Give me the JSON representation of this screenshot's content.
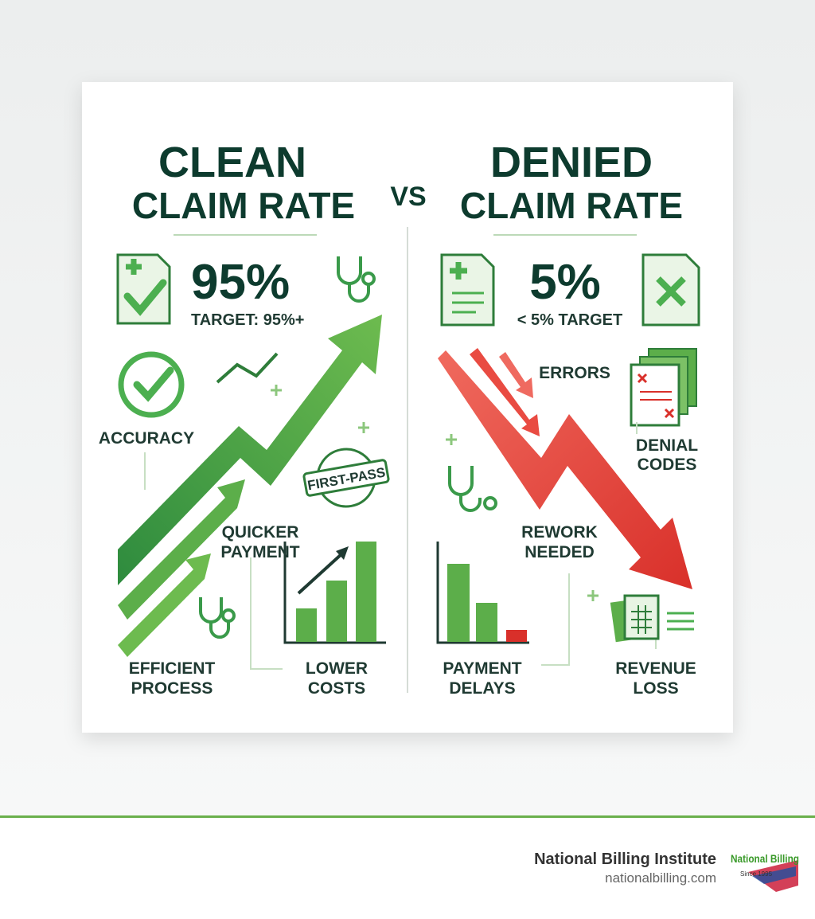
{
  "infographic": {
    "left": {
      "title": [
        "CLEAN",
        "CLAIM RATE"
      ],
      "stat": "95%",
      "target": "TARGET: 95%+",
      "stamp": "FIRST-PASS",
      "labels": {
        "accuracy": [
          "ACCURACY"
        ],
        "quicker": [
          "QUICKER",
          "PAYMENT"
        ],
        "efficient": [
          "EFFICIENT",
          "PROCESS"
        ],
        "costs": [
          "LOWER",
          "COSTS"
        ]
      }
    },
    "vs": "VS",
    "right": {
      "title": [
        "DENIED",
        "CLAIM RATE"
      ],
      "stat": "5%",
      "target": "< 5% TARGET",
      "labels": {
        "errors": [
          "ERRORS"
        ],
        "codes": [
          "DENIAL",
          "CODES"
        ],
        "rework": [
          "REWORK",
          "NEEDED"
        ],
        "delays": [
          "PAYMENT",
          "DELAYS"
        ],
        "loss": [
          "REVENUE",
          "LOSS"
        ]
      }
    }
  },
  "footer": {
    "name": "National Billing Institute",
    "url": "nationalbilling.com",
    "logo_name": "National Billing",
    "logo_since": "Since 1995"
  }
}
